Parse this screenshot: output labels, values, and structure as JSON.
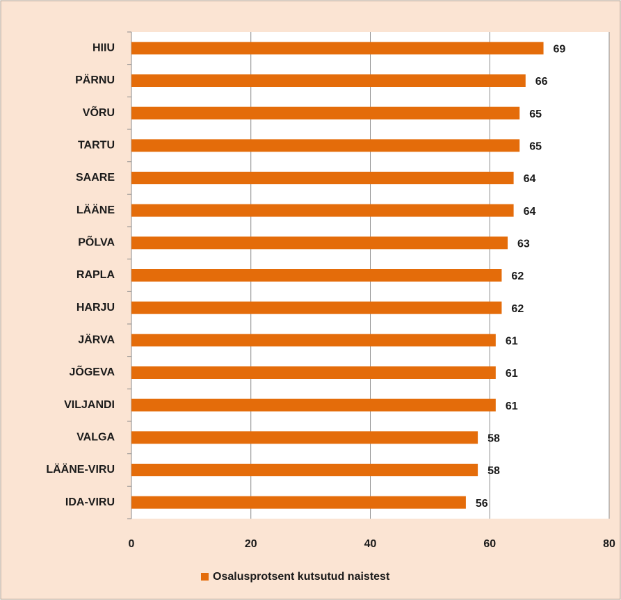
{
  "chart_data": {
    "type": "bar",
    "orientation": "horizontal",
    "categories": [
      "HIIU",
      "PÄRNU",
      "VÕRU",
      "TARTU",
      "SAARE",
      "LÄÄNE",
      "PÕLVA",
      "RAPLA",
      "HARJU",
      "JÄRVA",
      "JÕGEVA",
      "VILJANDI",
      "VALGA",
      "LÄÄNE-VIRU",
      "IDA-VIRU"
    ],
    "series": [
      {
        "name": "Osalusprotsent kutsutud naistest",
        "color": "#e46c0a",
        "values": [
          69,
          66,
          65,
          65,
          64,
          64,
          63,
          62,
          62,
          61,
          61,
          61,
          58,
          58,
          56
        ]
      }
    ],
    "xlim": [
      0,
      80
    ],
    "xticks": [
      0,
      20,
      40,
      60,
      80
    ],
    "grid": true,
    "legend": "bottom"
  }
}
